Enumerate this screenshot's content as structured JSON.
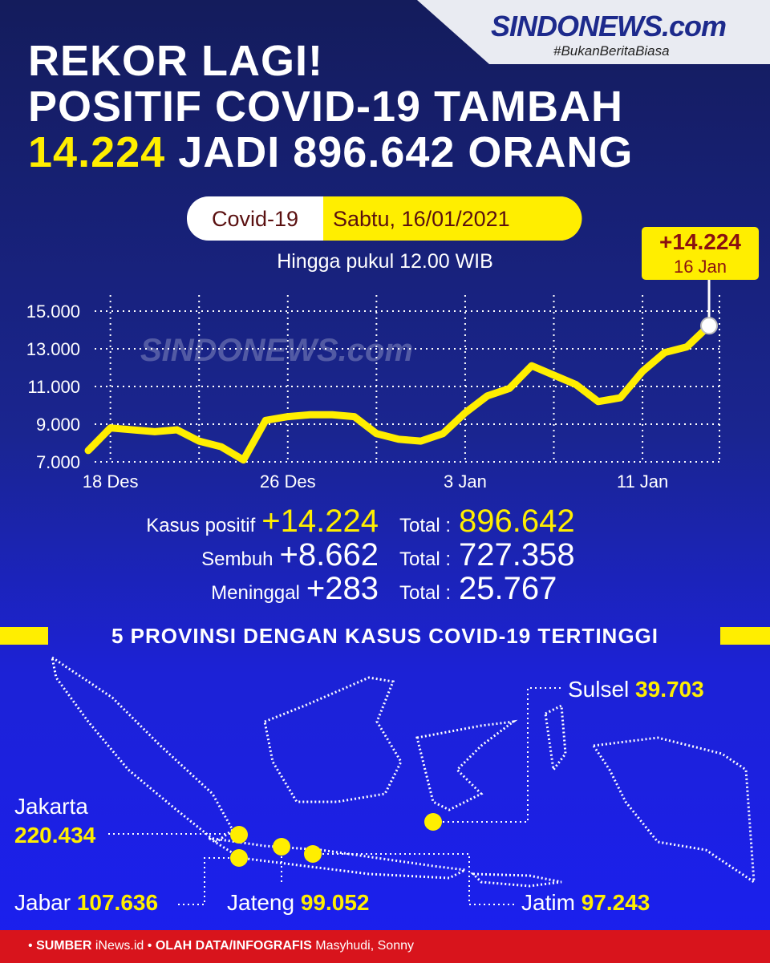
{
  "logo": {
    "name": "SINDONEWS.com",
    "tagline": "#BukanBeritaBiasa"
  },
  "header": {
    "line1": "REKOR LAGI!",
    "line2": "POSITIF COVID-19 TAMBAH",
    "line3_highlight": "14.224",
    "line3_rest": "JADI 896.642 ORANG"
  },
  "badge": {
    "left": "Covid-19",
    "right": "Sabtu, 16/01/2021"
  },
  "subtitle": "Hingga pukul 12.00 WIB",
  "chart_data": {
    "type": "line",
    "watermark": "SINDONEWS.com",
    "categories": [
      null,
      "18 Des",
      null,
      null,
      null,
      null,
      null,
      null,
      null,
      "26 Des",
      null,
      null,
      null,
      null,
      null,
      null,
      null,
      "3 Jan",
      null,
      null,
      null,
      null,
      null,
      null,
      null,
      "11 Jan",
      null,
      null,
      null
    ],
    "series": [
      {
        "name": "Kasus positif",
        "color": "#ffee00",
        "values": [
          7600,
          8800,
          8700,
          8600,
          8700,
          8100,
          7800,
          7100,
          9200,
          9400,
          9500,
          9500,
          9400,
          8500,
          8200,
          8100,
          8500,
          9600,
          10500,
          10900,
          12100,
          11600,
          11100,
          10200,
          10400,
          11800,
          12800,
          13100,
          14224
        ]
      }
    ],
    "annotation": {
      "value": "+14.224",
      "date": "16 Jan"
    },
    "ylim": [
      7000,
      15000
    ],
    "yticks": [
      {
        "value": 7000,
        "label": "7.000"
      },
      {
        "value": 9000,
        "label": "9.000"
      },
      {
        "value": 11000,
        "label": "11.000"
      },
      {
        "value": 13000,
        "label": "13.000"
      },
      {
        "value": 15000,
        "label": "15.000"
      }
    ],
    "grid": true
  },
  "stats": {
    "rows": [
      {
        "label": "Kasus positif",
        "value": "+14.224",
        "total_label": "Total :",
        "total": "896.642"
      },
      {
        "label": "Sembuh",
        "value": "+8.662",
        "total_label": "Total :",
        "total": "727.358"
      },
      {
        "label": "Meninggal",
        "value": "+283",
        "total_label": "Total :",
        "total": "25.767"
      }
    ]
  },
  "map": {
    "title": "5 PROVINSI DENGAN KASUS COVID-19 TERTINGGI",
    "provinces": [
      {
        "name": "Jakarta",
        "value": "220.434"
      },
      {
        "name": "Jabar",
        "value": "107.636"
      },
      {
        "name": "Jateng",
        "value": "99.052"
      },
      {
        "name": "Jatim",
        "value": "97.243"
      },
      {
        "name": "Sulsel",
        "value": "39.703"
      }
    ]
  },
  "footer": {
    "separator": "•",
    "source_label": "SUMBER",
    "source": "iNews.id",
    "credit_label": "OLAH DATA/INFOGRAFIS",
    "credit": "Masyhudi, Sonny"
  }
}
